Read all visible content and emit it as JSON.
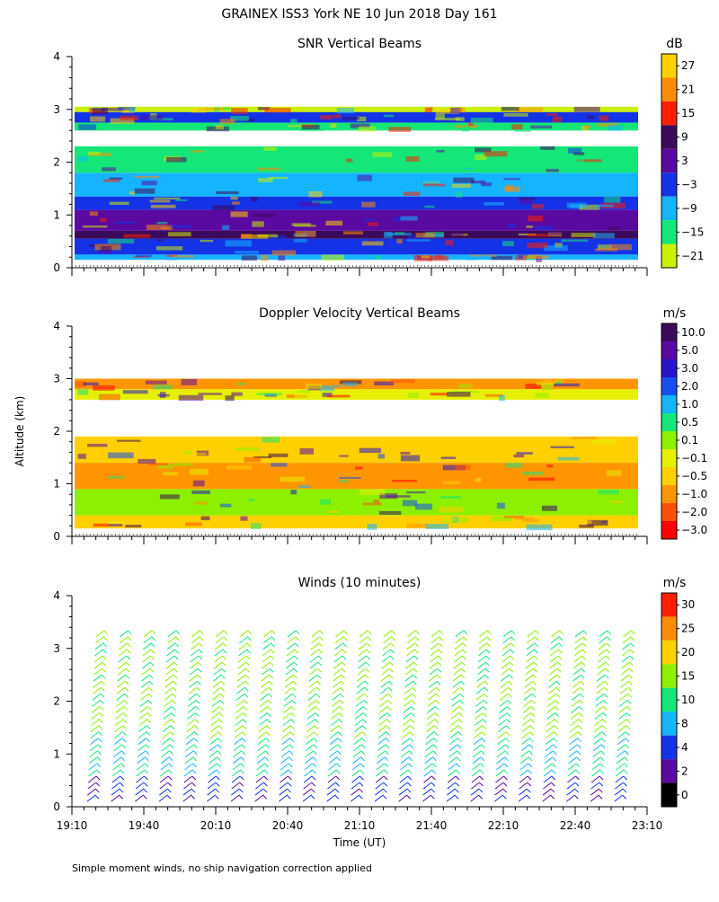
{
  "title": "GRAINEX ISS3 York NE  10 Jun 2018 Day 161",
  "footer": "Simple moment winds, no ship navigation correction applied",
  "shared_axes": {
    "ylabel": "Altitude (km)",
    "xlabel": "Time (UT)",
    "x_tick_labels": [
      "19:10",
      "19:40",
      "20:10",
      "20:40",
      "21:10",
      "21:40",
      "22:10",
      "22:40",
      "23:10"
    ],
    "y_tick_labels": [
      "0",
      "1",
      "2",
      "3",
      "4"
    ]
  },
  "chart_data": [
    {
      "type": "heatmap",
      "title": "SNR Vertical Beams",
      "unit": "dB",
      "xlim": [
        "19:10",
        "23:10"
      ],
      "ylim": [
        0,
        4
      ],
      "colorbar_labels": [
        "27",
        "21",
        "15",
        "9",
        "3",
        "−3",
        "−9",
        "−15",
        "−21"
      ],
      "colorbar_colors": [
        "#ffd000",
        "#ff8c00",
        "#ff1e00",
        "#3c0a5a",
        "#5a0aa0",
        "#1432e6",
        "#14b4ff",
        "#14e678",
        "#c8f000"
      ],
      "bands": [
        {
          "alt": [
            0.15,
            0.25
          ],
          "color": "#14b4ff"
        },
        {
          "alt": [
            0.25,
            0.55
          ],
          "color": "#1432e6"
        },
        {
          "alt": [
            0.55,
            0.7
          ],
          "color": "#3c0a5a"
        },
        {
          "alt": [
            0.7,
            1.1
          ],
          "color": "#5a0aa0"
        },
        {
          "alt": [
            1.1,
            1.35
          ],
          "color": "#1432e6"
        },
        {
          "alt": [
            1.35,
            1.8
          ],
          "color": "#14b4ff"
        },
        {
          "alt": [
            1.8,
            2.3
          ],
          "color": "#14e678"
        },
        {
          "alt": [
            2.6,
            2.75
          ],
          "color": "#14e678"
        },
        {
          "alt": [
            2.75,
            2.95
          ],
          "color": "#1432e6"
        },
        {
          "alt": [
            2.95,
            3.05
          ],
          "color": "#c8f000"
        }
      ]
    },
    {
      "type": "heatmap",
      "title": "Doppler Velocity Vertical Beams",
      "unit": "m/s",
      "xlim": [
        "19:10",
        "23:10"
      ],
      "ylim": [
        0,
        4
      ],
      "colorbar_labels": [
        "10.0",
        "5.0",
        "3.0",
        "2.0",
        "1.0",
        "0.5",
        "0.1",
        "−0.1",
        "−0.5",
        "−1.0",
        "−2.0",
        "−3.0"
      ],
      "colorbar_colors": [
        "#3c0a5a",
        "#5a0aa0",
        "#2814c8",
        "#1450f0",
        "#14b4ff",
        "#14e678",
        "#8cf000",
        "#e6f000",
        "#ffd000",
        "#ff9600",
        "#ff5000",
        "#ff0000"
      ],
      "bands": [
        {
          "alt": [
            0.15,
            0.4
          ],
          "color": "#ffd000"
        },
        {
          "alt": [
            0.4,
            0.9
          ],
          "color": "#8cf000"
        },
        {
          "alt": [
            0.9,
            1.4
          ],
          "color": "#ff9600"
        },
        {
          "alt": [
            1.4,
            1.9
          ],
          "color": "#ffd000"
        },
        {
          "alt": [
            2.6,
            2.8
          ],
          "color": "#e6f000"
        },
        {
          "alt": [
            2.8,
            3.0
          ],
          "color": "#ff9600"
        }
      ]
    },
    {
      "type": "wind_barbs",
      "title": "Winds (10 minutes)",
      "unit": "m/s",
      "xlim": [
        "19:10",
        "23:10"
      ],
      "ylim": [
        0,
        4
      ],
      "interval_minutes": 10,
      "colorbar_labels": [
        "30",
        "25",
        "20",
        "15",
        "10",
        "8",
        "4",
        "2",
        "0"
      ],
      "colorbar_colors": [
        "#ff1e00",
        "#ff8c00",
        "#ffd000",
        "#8cf000",
        "#14e678",
        "#14b4ff",
        "#1432e6",
        "#5a0aa0",
        "#000000"
      ]
    }
  ]
}
